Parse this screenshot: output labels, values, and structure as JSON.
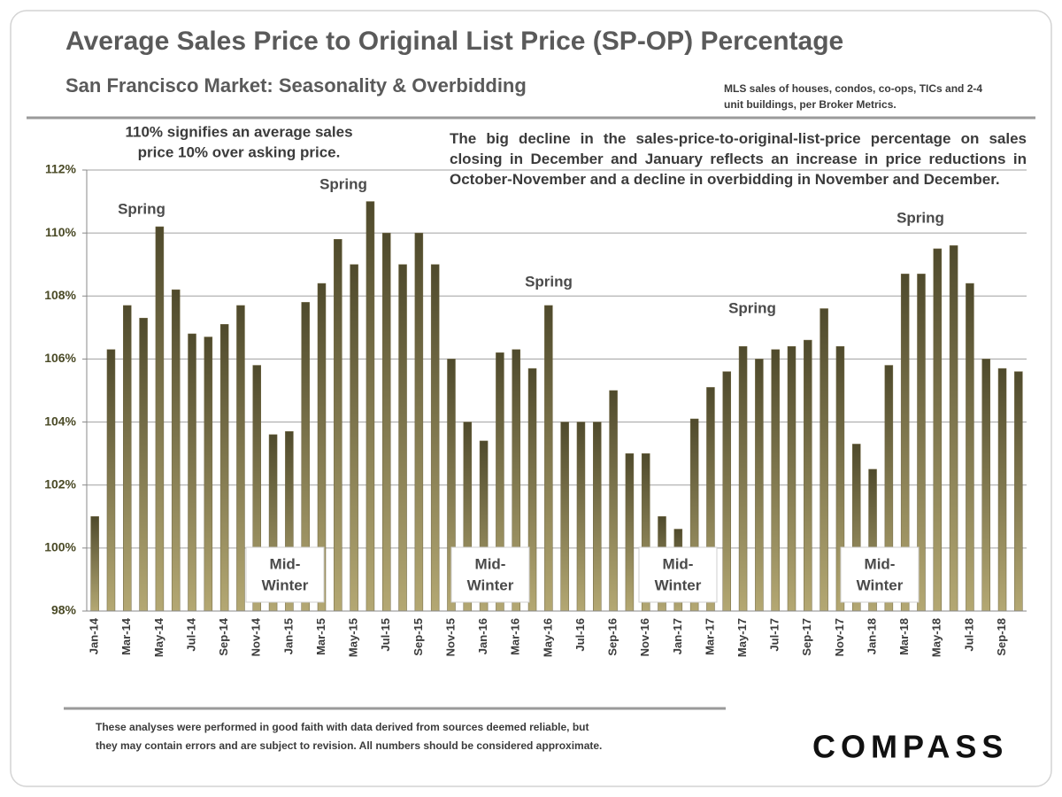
{
  "chart_data": {
    "type": "bar",
    "title": "Average Sales Price to Original List Price (SP-OP) Percentage",
    "subtitle": "San Francisco Market: Seasonality & Overbidding",
    "source_note": [
      "MLS sales of houses, condos, co-ops, TICs and 2-4",
      "unit buildings, per Broker Metrics."
    ],
    "note_left": [
      "110% signifies an average sales",
      "price 10% over asking price."
    ],
    "note_right": "The big decline in the sales-price-to-original-list-price percentage on sales closing in December and January reflects an increase in price reductions in October-November and a decline in overbidding in November and December.",
    "spring_labels": [
      "Spring",
      "Spring",
      "Spring",
      "Spring",
      "Spring"
    ],
    "winter_labels": [
      [
        "Mid-",
        "Winter"
      ],
      [
        "Mid-",
        "Winter"
      ],
      [
        "Mid-",
        "Winter"
      ],
      [
        "Mid-",
        "Winter"
      ]
    ],
    "disclaimer": [
      "These analyses were performed  in good faith with data derived from sources deemed reliable, but",
      "they may contain errors and are subject to revision.  All numbers should be considered  approximate."
    ],
    "logo": "COMPASS",
    "categories": [
      "Jan-14",
      null,
      "Mar-14",
      null,
      "May-14",
      null,
      "Jul-14",
      null,
      "Sep-14",
      null,
      "Nov-14",
      null,
      "Jan-15",
      null,
      "Mar-15",
      null,
      "May-15",
      null,
      "Jul-15",
      null,
      "Sep-15",
      null,
      "Nov-15",
      null,
      "Jan-16",
      null,
      "Mar-16",
      null,
      "May-16",
      null,
      "Jul-16",
      null,
      "Sep-16",
      null,
      "Nov-16",
      null,
      "Jan-17",
      null,
      "Mar-17",
      null,
      "May-17",
      null,
      "Jul-17",
      null,
      "Sep-17",
      null,
      "Nov-17",
      null,
      "Jan-18",
      null,
      "Mar-18",
      null,
      "May-18",
      null,
      "Jul-18",
      null,
      "Sep-18",
      null
    ],
    "values": [
      101.0,
      106.3,
      107.7,
      107.3,
      110.2,
      108.2,
      106.8,
      106.7,
      107.1,
      107.7,
      105.8,
      103.6,
      103.7,
      107.8,
      108.4,
      109.8,
      109.0,
      111.0,
      110.0,
      109.0,
      110.0,
      109.0,
      106.0,
      104.0,
      103.4,
      106.2,
      106.3,
      105.7,
      107.7,
      104.0,
      104.0,
      104.0,
      105.0,
      103.0,
      103.0,
      101.0,
      100.6,
      104.1,
      105.1,
      105.6,
      106.4,
      106.0,
      106.3,
      106.4,
      106.6,
      107.6,
      106.4,
      103.3,
      102.5,
      105.8,
      108.7,
      108.7,
      109.5,
      109.6,
      108.4,
      106.0,
      105.7,
      105.6
    ],
    "color": "#6e6540",
    "ylim": [
      98,
      112
    ],
    "yticks": [
      {
        "value": 98,
        "label": "98%"
      },
      {
        "value": 100,
        "label": "100%"
      },
      {
        "value": 102,
        "label": "102%"
      },
      {
        "value": 104,
        "label": "104%"
      },
      {
        "value": 106,
        "label": "106%"
      },
      {
        "value": 108,
        "label": "108%"
      },
      {
        "value": 110,
        "label": "110%"
      },
      {
        "value": 112,
        "label": "112%"
      }
    ],
    "grid": true
  }
}
